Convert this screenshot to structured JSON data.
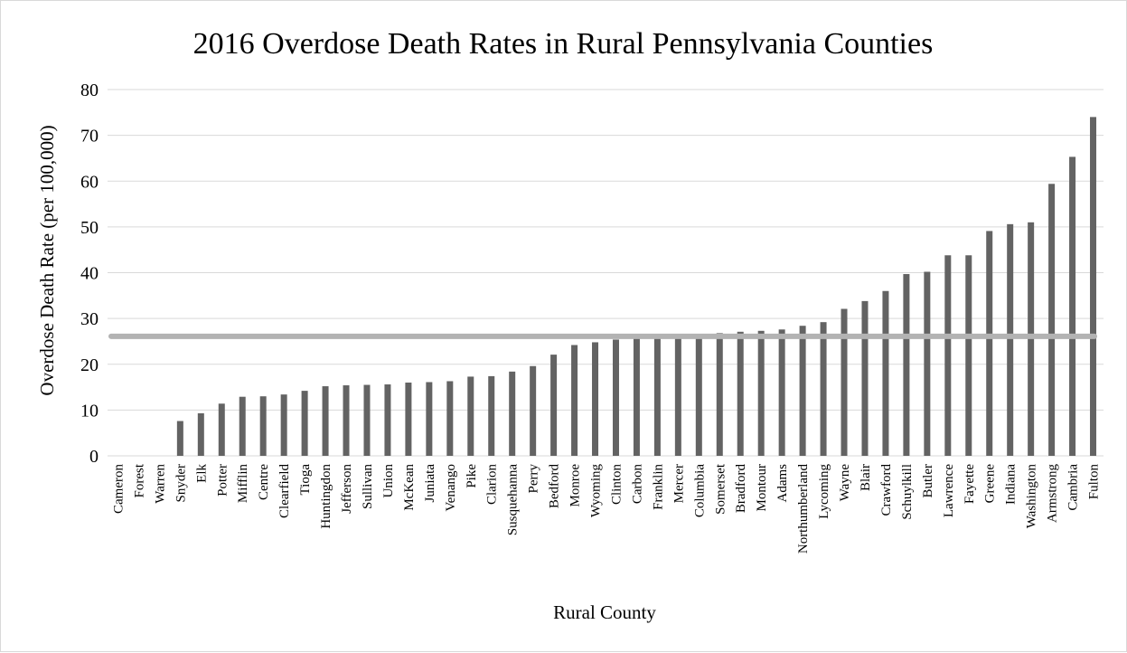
{
  "chart_data": {
    "type": "bar",
    "title": "2016 Overdose Death Rates in Rural Pennsylvania Counties",
    "xlabel": "Rural County",
    "ylabel": "Overdose Death Rate (per 100,000)",
    "ylim": [
      0,
      80
    ],
    "yticks": [
      0,
      10,
      20,
      30,
      40,
      50,
      60,
      70,
      80
    ],
    "grid": true,
    "legend": "none",
    "categories": [
      "Cameron",
      "Forest",
      "Warren",
      "Snyder",
      "Elk",
      "Potter",
      "Mifflin",
      "Centre",
      "Clearfield",
      "Tioga",
      "Huntingdon",
      "Jefferson",
      "Sullivan",
      "Union",
      "McKean",
      "Juniata",
      "Venango",
      "Pike",
      "Clarion",
      "Susquehanna",
      "Perry",
      "Bedford",
      "Monroe",
      "Wyoming",
      "Clinton",
      "Carbon",
      "Franklin",
      "Mercer",
      "Columbia",
      "Somerset",
      "Bradford",
      "Montour",
      "Adams",
      "Northumberland",
      "Lycoming",
      "Wayne",
      "Blair",
      "Crawford",
      "Schuylkill",
      "Butler",
      "Lawrence",
      "Fayette",
      "Greene",
      "Indiana",
      "Washington",
      "Armstrong",
      "Cambria",
      "Fulton"
    ],
    "values": [
      0,
      0,
      0,
      7.6,
      9.3,
      11.4,
      12.9,
      13.0,
      13.4,
      14.2,
      15.2,
      15.4,
      15.5,
      15.6,
      16.0,
      16.1,
      16.3,
      17.3,
      17.4,
      18.4,
      19.6,
      22.1,
      24.2,
      24.8,
      25.4,
      25.7,
      25.8,
      26.0,
      26.5,
      26.8,
      27.1,
      27.3,
      27.6,
      28.4,
      29.2,
      32.1,
      33.8,
      36.0,
      39.7,
      40.2,
      43.8,
      43.8,
      49.1,
      50.6,
      51.0,
      59.4,
      65.3,
      74.0
    ],
    "reference_line": 26.1,
    "colors": {
      "bar": "#636363",
      "reference_line": "#b3b3b3",
      "grid": "#d9d9d9",
      "text": "#000000"
    }
  }
}
